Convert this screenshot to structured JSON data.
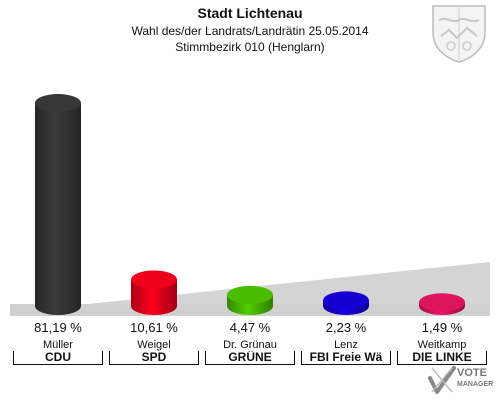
{
  "header": {
    "title": "Stadt Lichtenau",
    "subtitle1": "Wahl des/der Landrats/Landrätin 25.05.2014",
    "subtitle2": "Stimmbezirk 010 (Henglarn)"
  },
  "watermark": {
    "line1": "VOTE",
    "line2": "MANAGER"
  },
  "chart_data": {
    "type": "bar",
    "ylim": [
      0,
      100
    ],
    "grid": false,
    "legend": "none",
    "categories": [
      "CDU",
      "SPD",
      "GRÜNE",
      "FBI Freie Wä",
      "DIE LINKE"
    ],
    "candidates": [
      "Müller",
      "Weigel",
      "Dr. Grünau",
      "Lenz",
      "Weitkamp"
    ],
    "values": [
      81.19,
      10.61,
      4.47,
      2.23,
      1.49
    ],
    "value_labels": [
      "81,19 %",
      "10,61 %",
      "4,47 %",
      "2,23 %",
      "1,49 %"
    ],
    "colors": [
      "#333333",
      "#e3001b",
      "#46b400",
      "#1400c8",
      "#d2145a"
    ]
  }
}
